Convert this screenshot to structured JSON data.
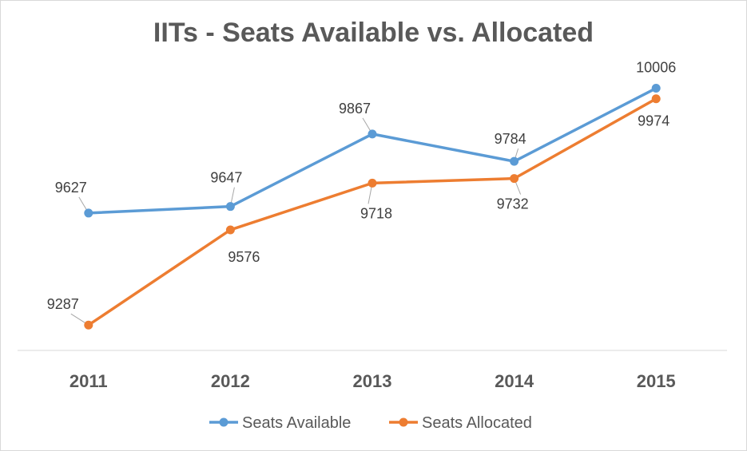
{
  "chart_data": {
    "type": "line",
    "title": "IITs - Seats Available vs. Allocated",
    "categories": [
      "2011",
      "2012",
      "2013",
      "2014",
      "2015"
    ],
    "series": [
      {
        "name": "Seats Available",
        "color": "#5B9BD5",
        "values": [
          9627,
          9647,
          9867,
          9784,
          10006
        ]
      },
      {
        "name": "Seats Allocated",
        "color": "#ED7D31",
        "values": [
          9287,
          9576,
          9718,
          9732,
          9974
        ]
      }
    ],
    "ylim": [
      9210,
      10080
    ],
    "grid": false,
    "legend": "bottom",
    "data_labels": true
  }
}
